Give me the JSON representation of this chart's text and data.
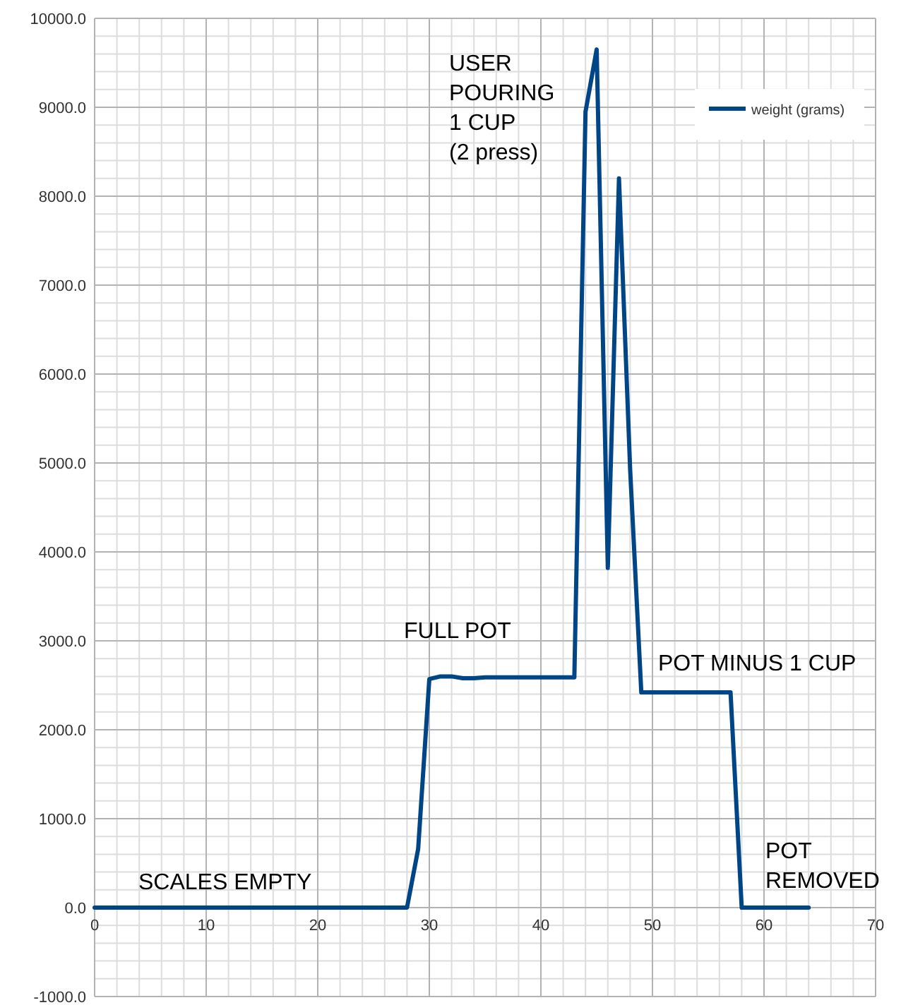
{
  "chart_data": {
    "type": "line",
    "x": [
      0,
      1,
      2,
      3,
      4,
      5,
      6,
      7,
      8,
      9,
      10,
      11,
      12,
      13,
      14,
      15,
      16,
      17,
      18,
      19,
      20,
      21,
      22,
      23,
      24,
      25,
      26,
      27,
      28,
      29,
      30,
      31,
      32,
      33,
      34,
      35,
      36,
      37,
      38,
      39,
      40,
      41,
      42,
      43,
      44,
      45,
      46,
      47,
      48,
      49,
      50,
      51,
      52,
      53,
      54,
      55,
      56,
      57,
      58,
      59,
      60,
      61,
      62,
      63,
      64
    ],
    "series": [
      {
        "name": "weight (grams)",
        "color": "#004586",
        "values": [
          0,
          0,
          0,
          0,
          0,
          0,
          0,
          0,
          0,
          0,
          0,
          0,
          0,
          0,
          0,
          0,
          0,
          0,
          0,
          0,
          0,
          0,
          0,
          0,
          0,
          0,
          0,
          0,
          0,
          660,
          2570,
          2600,
          2600,
          2580,
          2580,
          2590,
          2590,
          2590,
          2590,
          2590,
          2590,
          2590,
          2590,
          2590,
          8950,
          9650,
          3820,
          8200,
          4930,
          2420,
          2420,
          2420,
          2420,
          2420,
          2420,
          2420,
          2420,
          2420,
          0,
          0,
          0,
          0,
          0,
          0,
          0
        ]
      }
    ],
    "xlim": [
      0,
      70
    ],
    "xticks": [
      0,
      10,
      20,
      30,
      40,
      50,
      60,
      70
    ],
    "ylim": [
      -1000,
      10000
    ],
    "yticks": [
      {
        "value": -1000,
        "label": "-1000.0"
      },
      {
        "value": 0,
        "label": "0.0"
      },
      {
        "value": 1000,
        "label": "1000.0"
      },
      {
        "value": 2000,
        "label": "2000.0"
      },
      {
        "value": 3000,
        "label": "3000.0"
      },
      {
        "value": 4000,
        "label": "4000.0"
      },
      {
        "value": 5000,
        "label": "5000.0"
      },
      {
        "value": 6000,
        "label": "6000.0"
      },
      {
        "value": 7000,
        "label": "7000.0"
      },
      {
        "value": 8000,
        "label": "8000.0"
      },
      {
        "value": 9000,
        "label": "9000.0"
      },
      {
        "value": 10000,
        "label": "10000.0"
      }
    ],
    "grid": true,
    "legend": "top right",
    "marker": "none",
    "line_style": "solid",
    "annotations": [
      "SCALES EMPTY",
      "FULL POT",
      "USER\nPOURING\n1 CUP\n(2 press)",
      "POT MINUS 1 CUP",
      "POT\nREMOVED"
    ]
  }
}
